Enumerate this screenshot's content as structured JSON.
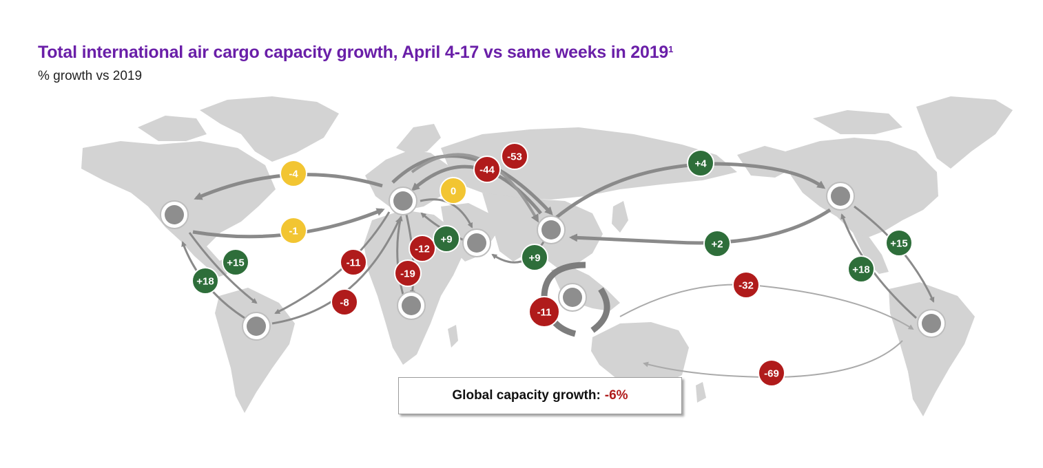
{
  "title": "Total international air cargo capacity growth, April 4-17 vs same weeks in 2019",
  "title_footnote": "1",
  "subtitle": "% growth vs 2019",
  "global": {
    "label": "Global capacity growth:",
    "value": "-6%"
  },
  "colors": {
    "positive": "#2e6e3a",
    "neutral": "#f2c532",
    "negative": "#b01b1b",
    "land": "#d3d3d3",
    "hub": "#8e8e8e",
    "title": "#6a1fa8"
  },
  "hubs": [
    "north-america-west",
    "europe",
    "middle-east",
    "south-america-west",
    "africa",
    "china",
    "southeast-asia",
    "north-america-east",
    "south-america-east"
  ],
  "badges": [
    {
      "id": "na-eu-top",
      "label": "-4",
      "status": "neutral"
    },
    {
      "id": "na-eu-bottom",
      "label": "-1",
      "status": "neutral"
    },
    {
      "id": "eu-me",
      "label": "0",
      "status": "neutral"
    },
    {
      "id": "eu-asia-53",
      "label": "-53",
      "status": "negative"
    },
    {
      "id": "eu-asia-44",
      "label": "-44",
      "status": "negative"
    },
    {
      "id": "asia-na-4",
      "label": "+4",
      "status": "positive"
    },
    {
      "id": "asia-na-2",
      "label": "+2",
      "status": "positive"
    },
    {
      "id": "na-sa-15",
      "label": "+15",
      "status": "positive"
    },
    {
      "id": "na-sa-18",
      "label": "+18",
      "status": "positive"
    },
    {
      "id": "eu-sa-11",
      "label": "-11",
      "status": "negative"
    },
    {
      "id": "eu-sa-8",
      "label": "-8",
      "status": "negative"
    },
    {
      "id": "eu-af-12",
      "label": "-12",
      "status": "negative"
    },
    {
      "id": "eu-af-19",
      "label": "-19",
      "status": "negative"
    },
    {
      "id": "me-eu-9",
      "label": "+9",
      "status": "positive"
    },
    {
      "id": "asia-me-9",
      "label": "+9",
      "status": "positive"
    },
    {
      "id": "intra-asia",
      "label": "-11",
      "status": "negative"
    },
    {
      "id": "pac-32",
      "label": "-32",
      "status": "negative"
    },
    {
      "id": "pac-69",
      "label": "-69",
      "status": "negative"
    },
    {
      "id": "na2-sa2-15",
      "label": "+15",
      "status": "positive"
    },
    {
      "id": "na2-sa2-18",
      "label": "+18",
      "status": "positive"
    }
  ]
}
